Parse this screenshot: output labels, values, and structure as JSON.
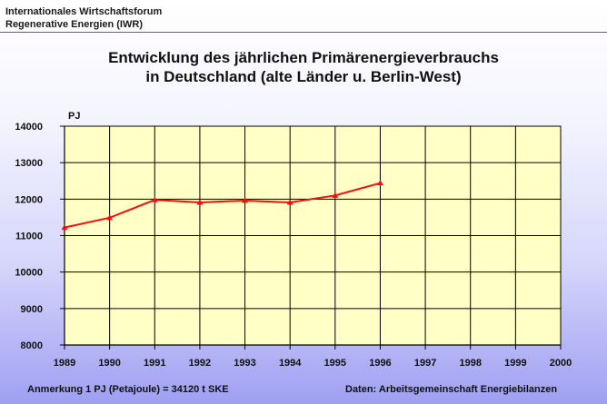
{
  "header": {
    "org_line1": "Internationales Wirtschaftsforum",
    "org_line2": "Regenerative Energien (IWR)"
  },
  "chart_data": {
    "type": "line",
    "title_line1": "Entwicklung des jährlichen Primärenergieverbrauchs",
    "title_line2": "in Deutschland (alte Länder u. Berlin-West)",
    "ylabel": "PJ",
    "xlabel": "",
    "categories": [
      "1989",
      "1990",
      "1991",
      "1992",
      "1993",
      "1994",
      "1995",
      "1996",
      "1997",
      "1998",
      "1999",
      "2000"
    ],
    "series": [
      {
        "values": [
          11220,
          11490,
          11980,
          11910,
          11960,
          11910,
          12100,
          12440,
          null,
          null,
          null,
          null
        ]
      }
    ],
    "ylim": [
      8000,
      14000
    ],
    "yticks": [
      8000,
      9000,
      10000,
      11000,
      12000,
      13000,
      14000
    ],
    "grid": true,
    "line_color": "#ee1111",
    "plot_background": "#ffffc6"
  },
  "footer": {
    "note": "Anmerkung 1 PJ (Petajoule) = 34120 t SKE",
    "source": "Daten: Arbeitsgemeinschaft Energiebilanzen"
  }
}
